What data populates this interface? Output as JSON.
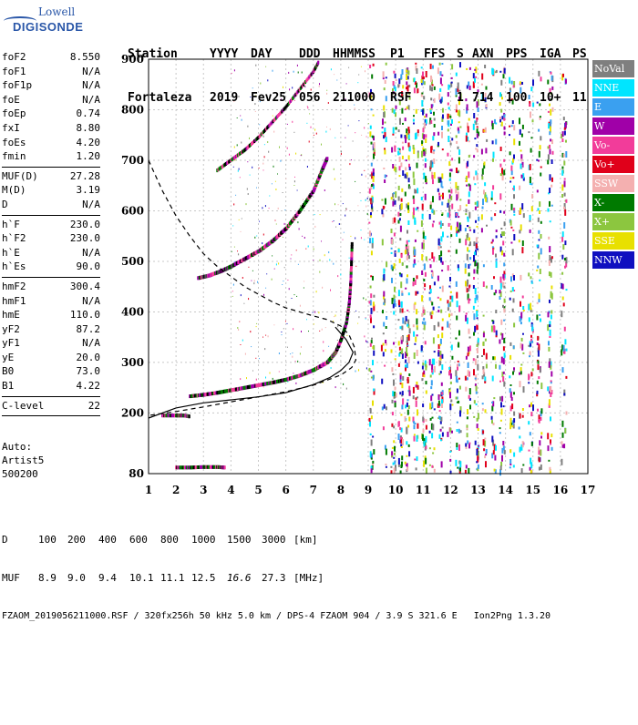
{
  "logo": {
    "line1": "Lowell",
    "line2": "DIGISONDE"
  },
  "header": {
    "labels": [
      "Station",
      "YYYY",
      "DAY",
      "DDD",
      "HHMMSS",
      "P1",
      "FFS",
      "S",
      "AXN",
      "PPS",
      "IGA",
      "PS"
    ],
    "values": [
      "Fortaleza",
      "2019",
      "Fev25",
      "056",
      "211000",
      "RSF",
      "1",
      "714",
      "100",
      "10+",
      "11"
    ]
  },
  "parameters": [
    [
      {
        "k": "foF2",
        "v": "8.550"
      },
      {
        "k": "foF1",
        "v": "N/A"
      },
      {
        "k": "foF1p",
        "v": "N/A"
      },
      {
        "k": "foE",
        "v": "N/A"
      },
      {
        "k": "foEp",
        "v": "0.74"
      },
      {
        "k": "fxI",
        "v": "8.80"
      },
      {
        "k": "foEs",
        "v": "4.20"
      },
      {
        "k": "fmin",
        "v": "1.20"
      }
    ],
    [
      {
        "k": "MUF(D)",
        "v": "27.28"
      },
      {
        "k": "M(D)",
        "v": "3.19"
      },
      {
        "k": "D",
        "v": "N/A"
      }
    ],
    [
      {
        "k": "h`F",
        "v": "230.0"
      },
      {
        "k": "h`F2",
        "v": "230.0"
      },
      {
        "k": "h`E",
        "v": "N/A"
      },
      {
        "k": "h`Es",
        "v": "90.0"
      }
    ],
    [
      {
        "k": "hmF2",
        "v": "300.4"
      },
      {
        "k": "hmF1",
        "v": "N/A"
      },
      {
        "k": "hmE",
        "v": "110.0"
      },
      {
        "k": "yF2",
        "v": "87.2"
      },
      {
        "k": "yF1",
        "v": "N/A"
      },
      {
        "k": "yE",
        "v": "20.0"
      },
      {
        "k": "B0",
        "v": "73.0"
      },
      {
        "k": "B1",
        "v": "4.22"
      }
    ],
    [
      {
        "k": "C-level",
        "v": "22"
      }
    ]
  ],
  "auto": [
    "Auto:",
    "Artist5",
    "500200"
  ],
  "legend": [
    {
      "label": "NoVal",
      "color": "#7f7f7f"
    },
    {
      "label": "NNE",
      "color": "#00e5ff"
    },
    {
      "label": "E",
      "color": "#3aa0f0"
    },
    {
      "label": "W",
      "color": "#a000a8"
    },
    {
      "label": "Vo-",
      "color": "#f23c9a"
    },
    {
      "label": "Vo+",
      "color": "#e0001a"
    },
    {
      "label": "SSW",
      "color": "#f4b0b0"
    },
    {
      "label": "X-",
      "color": "#007a00"
    },
    {
      "label": "X+",
      "color": "#8cc63f"
    },
    {
      "label": "SSE",
      "color": "#e8e000"
    },
    {
      "label": "NNW",
      "color": "#1010c0"
    }
  ],
  "footer": {
    "d_label": "D",
    "d_values": [
      "100",
      "200",
      "400",
      "600",
      "800",
      "1000",
      "1500",
      "3000",
      "[km]"
    ],
    "muf_label": "MUF",
    "muf_values": [
      "8.9",
      "9.0",
      "9.4",
      "10.1",
      "11.1",
      "12.5",
      "16.6",
      "27.3",
      "[MHz]"
    ],
    "info": "FZAOM_2019056211000.RSF / 320fx256h 50 kHz 5.0 km / DPS-4 FZAOM 904 / 3.9 S 321.6 E   Ion2Png 1.3.20"
  },
  "chart_data": {
    "type": "scatter",
    "xlim": [
      1,
      17
    ],
    "ylim": [
      80,
      900
    ],
    "x_ticks": [
      1,
      2,
      3,
      4,
      5,
      6,
      7,
      8,
      9,
      10,
      11,
      12,
      13,
      14,
      15,
      16,
      17
    ],
    "y_ticks": [
      80,
      200,
      300,
      400,
      500,
      600,
      700,
      800,
      900
    ],
    "grid": true,
    "trace_lower_F": [
      [
        2.5,
        233
      ],
      [
        3.0,
        236
      ],
      [
        3.5,
        240
      ],
      [
        4.0,
        245
      ],
      [
        4.5,
        250
      ],
      [
        5.0,
        255
      ],
      [
        5.5,
        260
      ],
      [
        6.0,
        266
      ],
      [
        6.5,
        274
      ],
      [
        7.0,
        285
      ],
      [
        7.5,
        300
      ],
      [
        7.8,
        320
      ],
      [
        8.0,
        345
      ],
      [
        8.2,
        380
      ],
      [
        8.3,
        420
      ],
      [
        8.35,
        460
      ],
      [
        8.4,
        540
      ]
    ],
    "trace_upper_F": [
      [
        2.8,
        467
      ],
      [
        3.2,
        472
      ],
      [
        3.6,
        480
      ],
      [
        4.0,
        490
      ],
      [
        4.5,
        505
      ],
      [
        5.0,
        520
      ],
      [
        5.5,
        540
      ],
      [
        6.0,
        565
      ],
      [
        6.5,
        600
      ],
      [
        7.0,
        640
      ],
      [
        7.3,
        680
      ],
      [
        7.5,
        705
      ]
    ],
    "trace_top_F": [
      [
        3.5,
        680
      ],
      [
        4.0,
        700
      ],
      [
        4.5,
        720
      ],
      [
        5.0,
        745
      ],
      [
        5.5,
        775
      ],
      [
        6.0,
        805
      ],
      [
        6.5,
        840
      ],
      [
        7.0,
        875
      ],
      [
        7.2,
        895
      ]
    ],
    "es_layer": [
      [
        1.5,
        195
      ],
      [
        2.0,
        195
      ],
      [
        2.3,
        195
      ],
      [
        2.5,
        193
      ]
    ],
    "low_echo": [
      [
        2.0,
        92
      ],
      [
        2.5,
        92
      ],
      [
        3.0,
        93
      ],
      [
        3.5,
        93
      ],
      [
        3.8,
        92
      ]
    ],
    "profile_solid": [
      [
        1.0,
        190
      ],
      [
        2.0,
        210
      ],
      [
        3.0,
        220
      ],
      [
        4.0,
        226
      ],
      [
        5.0,
        232
      ],
      [
        6.0,
        240
      ],
      [
        7.0,
        256
      ],
      [
        7.6,
        270
      ],
      [
        8.0,
        284
      ],
      [
        8.3,
        300
      ],
      [
        8.45,
        320
      ],
      [
        8.2,
        345
      ],
      [
        7.8,
        370
      ]
    ],
    "profile_dashed": [
      [
        1.0,
        700
      ],
      [
        1.5,
        640
      ],
      [
        2.0,
        590
      ],
      [
        2.5,
        550
      ],
      [
        3.0,
        515
      ],
      [
        3.5,
        490
      ],
      [
        4.0,
        470
      ],
      [
        4.5,
        450
      ],
      [
        5.0,
        435
      ],
      [
        5.5,
        420
      ],
      [
        6.0,
        408
      ],
      [
        6.5,
        400
      ],
      [
        7.0,
        392
      ],
      [
        7.5,
        385
      ],
      [
        8.0,
        372
      ],
      [
        8.3,
        355
      ],
      [
        8.5,
        330
      ],
      [
        8.55,
        305
      ],
      [
        8.4,
        290
      ],
      [
        8.0,
        275
      ],
      [
        7.0,
        255
      ],
      [
        6.0,
        242
      ],
      [
        5.0,
        232
      ],
      [
        4.0,
        222
      ],
      [
        3.0,
        212
      ],
      [
        2.0,
        203
      ],
      [
        1.0,
        195
      ]
    ]
  }
}
